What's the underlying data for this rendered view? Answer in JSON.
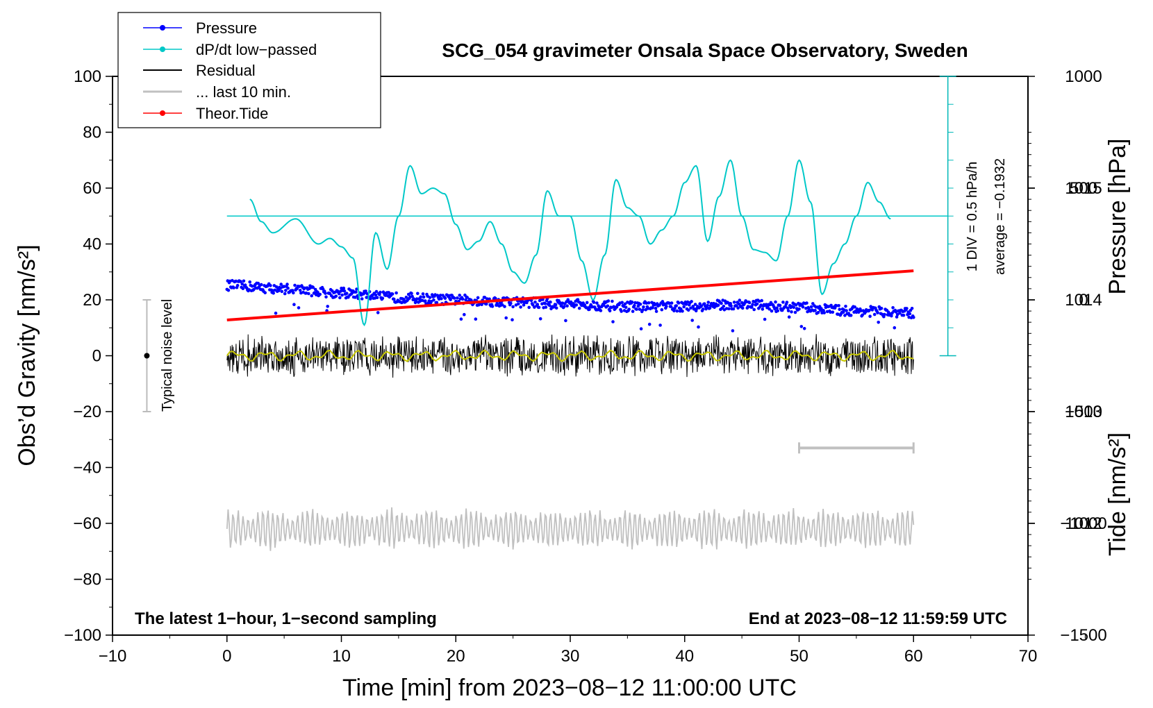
{
  "chart_data": {
    "type": "line",
    "title": "SCG_054 gravimeter Onsala Space Observatory, Sweden",
    "xlabel": "Time [min] from 2023−08−12 11:00:00 UTC",
    "ylabel_left": "Obs’d Gravity [nm/s²]",
    "ylabel_pressure": "Pressure [hPa]",
    "ylabel_tide": "Tide [nm/s²]",
    "xlim": [
      -10,
      70
    ],
    "ylim": [
      -100,
      100
    ],
    "pressure_lim": [
      1011,
      1016
    ],
    "tide_lim": [
      -1500,
      1000
    ],
    "x_ticks": [
      "−10",
      "0",
      "10",
      "20",
      "30",
      "40",
      "50",
      "60",
      "70"
    ],
    "y_ticks": [
      "−100",
      "−80",
      "−60",
      "−40",
      "−20",
      "0",
      "20",
      "40",
      "60",
      "80",
      "100"
    ],
    "pressure_ticks": [
      "1012",
      "1013",
      "1014",
      "1015"
    ],
    "tide_ticks": [
      "−1500",
      "−1000",
      "−500",
      "0",
      "500",
      "1000"
    ],
    "legend": [
      {
        "label": "Pressure",
        "color": "#0000ff",
        "marker": true
      },
      {
        "label": "dP/dt low−passed",
        "color": "#00c8c8",
        "marker": true
      },
      {
        "label": "Residual",
        "color": "#000000",
        "marker": false
      },
      {
        "label": "... last 10 min.",
        "color": "#c0c0c0",
        "marker": false
      },
      {
        "label": "Theor.Tide",
        "color": "#ff0000",
        "marker": true
      }
    ],
    "annotations": {
      "bottom_left": "The latest 1−hour, 1−second sampling",
      "bottom_right": "End at 2023−08−12 11:59:59 UTC",
      "noise_label": "Typical noise level",
      "div_label": "1 DIV = 0.5 hPa/h",
      "average_label": "average = −0.1932"
    },
    "noise_bar": {
      "x": -7,
      "y_low": -20,
      "y_high": 20,
      "center": 0
    },
    "last10_bar": {
      "x_start": 50,
      "x_end": 60,
      "y": -33
    },
    "series": [
      {
        "name": "Pressure",
        "color": "#0000ff",
        "x": [
          0,
          5,
          10,
          15,
          20,
          25,
          30,
          35,
          40,
          45,
          50,
          55,
          60
        ],
        "values": [
          1014.13,
          1014.1,
          1014.06,
          1014.02,
          1014.0,
          1013.98,
          1013.96,
          1013.94,
          1013.94,
          1013.96,
          1013.93,
          1013.9,
          1013.88
        ]
      },
      {
        "name": "dP/dt low-passed",
        "color": "#00c8c8",
        "x": [
          2,
          3,
          4,
          6,
          8,
          9,
          10,
          11,
          12,
          13,
          14,
          15,
          16,
          17,
          18,
          19,
          20,
          21,
          22,
          23,
          24,
          25,
          26,
          27,
          28,
          29,
          30,
          31,
          32,
          33,
          34,
          35,
          36,
          37,
          38,
          39,
          40,
          41,
          42,
          43,
          44,
          45,
          46,
          47,
          48,
          49,
          50,
          51,
          52,
          53,
          54,
          55,
          56,
          57,
          58
        ],
        "values": [
          56,
          48,
          44,
          49,
          40,
          42,
          39,
          35,
          11,
          44,
          31,
          50,
          68,
          58,
          60,
          58,
          47,
          38,
          41,
          48,
          40,
          30,
          26,
          36,
          59,
          50,
          50,
          34,
          20,
          36,
          63,
          53,
          50,
          40,
          45,
          50,
          62,
          68,
          41,
          57,
          70,
          50,
          38,
          37,
          34,
          50,
          70,
          55,
          22,
          33,
          40,
          50,
          62,
          55,
          49
        ]
      },
      {
        "name": "Residual",
        "color": "#000000",
        "x": [
          0,
          60
        ],
        "values": [
          0,
          0
        ],
        "amplitude": 8
      },
      {
        "name": "... last 10 min.",
        "color": "#c0c0c0",
        "x": [
          0,
          60
        ],
        "values": [
          -62,
          -62
        ],
        "amplitude": 8
      },
      {
        "name": "Theor.Tide",
        "color": "#ff0000",
        "x": [
          0,
          60
        ],
        "tide_values": [
          -90,
          130
        ]
      }
    ]
  }
}
